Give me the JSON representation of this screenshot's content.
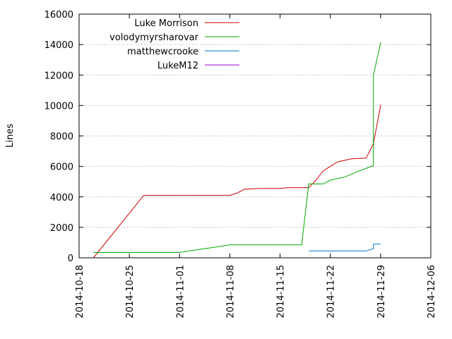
{
  "chart_data": {
    "type": "line",
    "title": "",
    "xlabel": "",
    "ylabel": "Lines",
    "xlim": [
      "2014-10-18",
      "2014-12-06"
    ],
    "ylim": [
      0,
      16000
    ],
    "x_ticks": [
      "2014-10-18",
      "2014-10-25",
      "2014-11-01",
      "2014-11-08",
      "2014-11-15",
      "2014-11-22",
      "2014-11-29",
      "2014-12-06"
    ],
    "y_ticks": [
      0,
      2000,
      4000,
      6000,
      8000,
      10000,
      12000,
      14000,
      16000
    ],
    "grid": "horizontal dotted",
    "legend_position": "top-left",
    "series": [
      {
        "name": "Luke Morrison",
        "color": "#cc0000",
        "points": [
          [
            "2014-10-20",
            0
          ],
          [
            "2014-10-27",
            4100
          ],
          [
            "2014-11-08",
            4100
          ],
          [
            "2014-11-09",
            4250
          ],
          [
            "2014-11-10",
            4500
          ],
          [
            "2014-11-12",
            4550
          ],
          [
            "2014-11-15",
            4550
          ],
          [
            "2014-11-16",
            4600
          ],
          [
            "2014-11-19",
            4600
          ],
          [
            "2014-11-20",
            5100
          ],
          [
            "2014-11-21",
            5700
          ],
          [
            "2014-11-22",
            6000
          ],
          [
            "2014-11-23",
            6300
          ],
          [
            "2014-11-24",
            6400
          ],
          [
            "2014-11-25",
            6500
          ],
          [
            "2014-11-27",
            6550
          ],
          [
            "2014-11-28",
            7500
          ],
          [
            "2014-11-29",
            10000
          ],
          [
            "2014-11-29",
            10050
          ]
        ]
      },
      {
        "name": "volodymyrsharovar",
        "color": "#00aa00",
        "points": [
          [
            "2014-10-20",
            350
          ],
          [
            "2014-11-01",
            350
          ],
          [
            "2014-11-03",
            500
          ],
          [
            "2014-11-06",
            700
          ],
          [
            "2014-11-08",
            850
          ],
          [
            "2014-11-18",
            850
          ],
          [
            "2014-11-19",
            4850
          ],
          [
            "2014-11-21",
            4850
          ],
          [
            "2014-11-22",
            5100
          ],
          [
            "2014-11-24",
            5300
          ],
          [
            "2014-11-26",
            5700
          ],
          [
            "2014-11-28",
            6050
          ],
          [
            "2014-11-28",
            12000
          ],
          [
            "2014-11-29",
            14100
          ],
          [
            "2014-11-29",
            14150
          ]
        ]
      },
      {
        "name": "matthewcrooke",
        "color": "#0077cc",
        "points": [
          [
            "2014-11-19",
            450
          ],
          [
            "2014-11-27",
            450
          ],
          [
            "2014-11-28",
            600
          ],
          [
            "2014-11-28",
            900
          ],
          [
            "2014-11-29",
            900
          ]
        ]
      },
      {
        "name": "LukeM12",
        "color": "#9900cc",
        "points": []
      }
    ]
  }
}
